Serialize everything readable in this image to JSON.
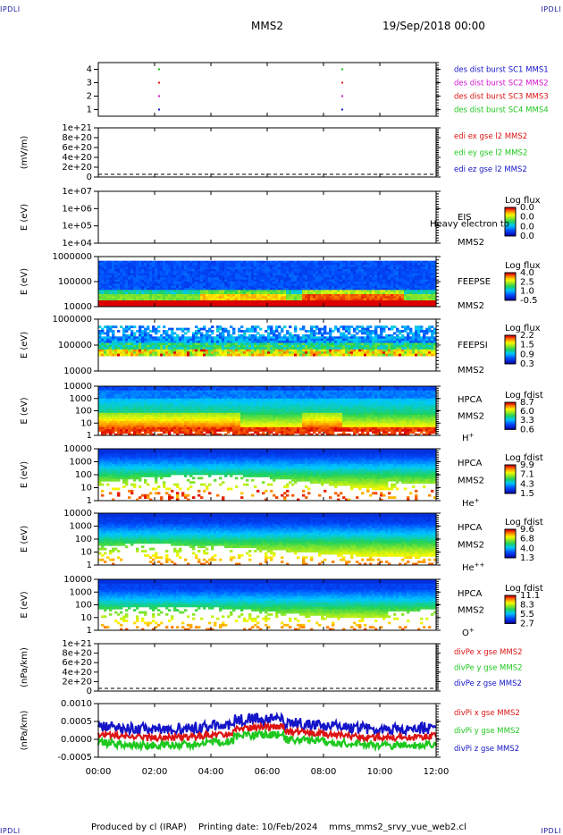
{
  "corner_tl": "IPDLI",
  "corner_tr": "IPDLI",
  "corner_bl": "IPDLI",
  "corner_br": "IPDLI",
  "header": {
    "spacecraft": "MMS2",
    "date": "19/Sep/2018 00:00"
  },
  "footer": {
    "produced_by": "Produced by cl (IRAP)",
    "printing_date": "Printing date: 10/Feb/2024",
    "filename": "mms_mms2_srvy_vue_web2.cl"
  },
  "colors": {
    "blue": "#1414c8",
    "green": "#1ec81e",
    "red": "#dc1414",
    "magenta": "#d214d2"
  },
  "chart_data": {
    "type": "heatmap",
    "x_ticks": [
      "00:00",
      "02:00",
      "04:00",
      "06:00",
      "08:00",
      "10:00",
      "12:00"
    ],
    "panels": [
      {
        "id": "burst",
        "yticks": [
          "4",
          "3",
          "2",
          "1"
        ],
        "ylabel": "",
        "legend": [
          {
            "text": "des dist burst SC1 MMS1",
            "color": "#1414c8"
          },
          {
            "text": "des dist burst SC2 MMS2",
            "color": "#d214d2"
          },
          {
            "text": "des dist burst SC3 MMS3",
            "color": "#dc1414"
          },
          {
            "text": "des dist burst SC4 MMS4",
            "color": "#1ec81e"
          }
        ]
      },
      {
        "id": "edi",
        "yticks": [
          "1e+21",
          "8e+20",
          "6e+20",
          "4e+20",
          "2e+20",
          "0"
        ],
        "ylabel": "(mV/m)",
        "legend": [
          {
            "text": "edi ex gse l2 MMS2",
            "color": "#dc1414"
          },
          {
            "text": "edi ey gse l2 MMS2",
            "color": "#1ec81e"
          },
          {
            "text": "edi ez gse l2 MMS2",
            "color": "#1414c8"
          }
        ]
      },
      {
        "id": "eis",
        "yticks": [
          "1e+07",
          "1e+06",
          "1e+05",
          "1e+04"
        ],
        "ylabel": "E (eV)",
        "instrument": "EIS",
        "spacecraft": "MMS2",
        "overlay": "Heavy electron to",
        "cb_title": "Log flux",
        "cb_ticks": [
          "0.0",
          "0.0",
          "0.0",
          "0.0"
        ]
      },
      {
        "id": "feepse",
        "yticks": [
          "1000000",
          "100000",
          "10000"
        ],
        "ylabel": "E (eV)",
        "instrument": "FEEPSE",
        "spacecraft": "MMS2",
        "cb_title": "Log flux",
        "cb_ticks": [
          "4.0",
          "2.5",
          "1.0",
          "-0.5"
        ]
      },
      {
        "id": "feepsi",
        "yticks": [
          "1000000",
          "100000",
          "10000"
        ],
        "ylabel": "E (eV)",
        "instrument": "FEEPSI",
        "spacecraft": "MMS2",
        "cb_title": "Log flux",
        "cb_ticks": [
          "2.2",
          "1.5",
          "0.9",
          "0.3"
        ]
      },
      {
        "id": "hpca_h",
        "yticks": [
          "10000",
          "1000",
          "100",
          "10",
          "1"
        ],
        "ylabel": "E (eV)",
        "instrument": "HPCA",
        "spacecraft": "MMS2",
        "species": "H",
        "species_sup": "+",
        "cb_title": "Log fdist",
        "cb_ticks": [
          "8.7",
          "6.0",
          "3.3",
          "0.6"
        ]
      },
      {
        "id": "hpca_he",
        "yticks": [
          "10000",
          "1000",
          "100",
          "10",
          "1"
        ],
        "ylabel": "E (eV)",
        "instrument": "HPCA",
        "spacecraft": "MMS2",
        "species": "He",
        "species_sup": "+",
        "cb_title": "Log fdist",
        "cb_ticks": [
          "9.9",
          "7.1",
          "4.3",
          "1.5"
        ]
      },
      {
        "id": "hpca_hepp",
        "yticks": [
          "10000",
          "1000",
          "100",
          "10",
          "1"
        ],
        "ylabel": "E (eV)",
        "instrument": "HPCA",
        "spacecraft": "MMS2",
        "species": "He",
        "species_sup": "++",
        "cb_title": "Log fdist",
        "cb_ticks": [
          "9.6",
          "6.8",
          "4.0",
          "1.3"
        ]
      },
      {
        "id": "hpca_o",
        "yticks": [
          "10000",
          "1000",
          "100",
          "10",
          "1"
        ],
        "ylabel": "E (eV)",
        "instrument": "HPCA",
        "spacecraft": "MMS2",
        "species": "O",
        "species_sup": "+",
        "cb_title": "Log fdist",
        "cb_ticks": [
          "11.1",
          "8.3",
          "5.5",
          "2.7"
        ]
      },
      {
        "id": "divpe",
        "yticks": [
          "1e+21",
          "8e+20",
          "6e+20",
          "4e+20",
          "2e+20",
          "0"
        ],
        "ylabel": "(nPa/km)",
        "legend": [
          {
            "text": "divPe x gse MMS2",
            "color": "#dc1414"
          },
          {
            "text": "divPe y gse MMS2",
            "color": "#1ec81e"
          },
          {
            "text": "divPe z gse MMS2",
            "color": "#1414c8"
          }
        ]
      },
      {
        "id": "divpi",
        "yticks": [
          "0.0010",
          "0.0005",
          "0.0000",
          "-0.0005"
        ],
        "ylabel": "(nPa/km)",
        "legend": [
          {
            "text": "divPi x gse MMS2",
            "color": "#dc1414"
          },
          {
            "text": "divPi y gse MMS2",
            "color": "#1ec81e"
          },
          {
            "text": "divPi z gse MMS2",
            "color": "#1414c8"
          }
        ]
      }
    ]
  }
}
